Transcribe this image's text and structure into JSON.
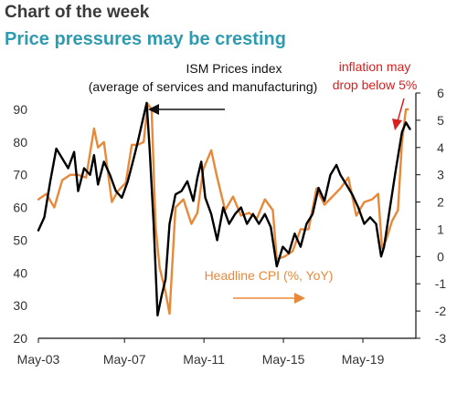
{
  "header": {
    "kicker": "Chart of the week",
    "title": "Price pressures may be cresting"
  },
  "colors": {
    "ism": "#000000",
    "cpi": "#e8893a",
    "annotation_red": "#d62021",
    "title_teal": "#2f9bb1"
  },
  "chart_data": {
    "type": "line",
    "x_ticks": [
      "May-03",
      "May-07",
      "May-11",
      "May-15",
      "May-19"
    ],
    "x_range": [
      2003.0,
      2022.0
    ],
    "y_left": {
      "ticks": [
        20,
        30,
        40,
        50,
        60,
        70,
        80,
        90
      ],
      "range": [
        20,
        95
      ]
    },
    "y_right": {
      "ticks": [
        -3,
        -2,
        -1,
        0,
        1,
        2,
        3,
        4,
        5,
        6
      ],
      "range": [
        -3,
        6
      ]
    },
    "grid": false,
    "series": [
      {
        "name": "ISM Prices index (average of services and manufacturing)",
        "axis": "left",
        "color": "#000000",
        "x": [
          2003.0,
          2003.3,
          2003.6,
          2003.9,
          2004.2,
          2004.5,
          2004.8,
          2005.0,
          2005.3,
          2005.6,
          2005.8,
          2006.0,
          2006.3,
          2006.6,
          2006.9,
          2007.2,
          2007.5,
          2007.8,
          2008.0,
          2008.3,
          2008.45,
          2008.6,
          2008.8,
          2009.0,
          2009.2,
          2009.4,
          2009.6,
          2009.9,
          2010.2,
          2010.5,
          2010.8,
          2011.0,
          2011.2,
          2011.4,
          2011.7,
          2012.0,
          2012.3,
          2012.6,
          2012.9,
          2013.2,
          2013.5,
          2013.8,
          2014.1,
          2014.4,
          2014.7,
          2015.0,
          2015.3,
          2015.6,
          2015.9,
          2016.2,
          2016.5,
          2016.8,
          2017.1,
          2017.4,
          2017.7,
          2018.0,
          2018.2,
          2018.5,
          2018.8,
          2019.1,
          2019.4,
          2019.7,
          2020.0,
          2020.25,
          2020.4,
          2020.7,
          2021.0,
          2021.3,
          2021.5,
          2021.7
        ],
        "y": [
          53,
          57,
          68,
          78,
          75,
          72,
          77,
          65,
          72,
          70,
          76,
          67,
          74,
          70,
          65,
          63,
          68,
          75,
          80,
          88,
          92,
          78,
          55,
          27,
          33,
          38,
          55,
          64,
          65,
          68,
          62,
          69,
          74,
          63,
          58,
          50,
          60,
          55,
          58,
          60,
          55,
          58,
          55,
          58,
          54,
          42,
          48,
          46,
          52,
          48,
          55,
          58,
          66,
          62,
          70,
          73,
          70,
          67,
          64,
          60,
          55,
          57,
          55,
          45,
          48,
          60,
          72,
          83,
          86,
          84
        ]
      },
      {
        "name": "Headline CPI (%, YoY)",
        "axis": "right",
        "color": "#e8893a",
        "x": [
          2003.0,
          2003.4,
          2003.8,
          2004.2,
          2004.6,
          2005.0,
          2005.4,
          2005.8,
          2006.0,
          2006.3,
          2006.7,
          2007.0,
          2007.4,
          2007.7,
          2008.0,
          2008.3,
          2008.5,
          2008.7,
          2008.9,
          2009.1,
          2009.4,
          2009.6,
          2009.9,
          2010.3,
          2010.7,
          2011.0,
          2011.3,
          2011.7,
          2012.0,
          2012.4,
          2012.8,
          2013.2,
          2013.6,
          2014.0,
          2014.4,
          2014.8,
          2015.0,
          2015.4,
          2015.8,
          2016.2,
          2016.6,
          2017.0,
          2017.4,
          2017.8,
          2018.2,
          2018.6,
          2019.0,
          2019.4,
          2019.8,
          2020.1,
          2020.3,
          2020.5,
          2020.8,
          2021.1,
          2021.3,
          2021.5,
          2021.6
        ],
        "y": [
          2.1,
          2.3,
          1.8,
          2.8,
          3.0,
          3.0,
          2.9,
          4.7,
          4.0,
          4.2,
          2.0,
          2.4,
          2.7,
          4.1,
          4.1,
          4.2,
          5.6,
          5.4,
          1.1,
          -0.4,
          -1.3,
          -2.1,
          1.8,
          2.1,
          1.2,
          1.6,
          3.2,
          3.9,
          2.9,
          1.7,
          2.2,
          1.5,
          1.6,
          1.4,
          2.1,
          1.7,
          -0.1,
          0.0,
          0.2,
          1.0,
          1.0,
          2.5,
          1.9,
          2.2,
          2.5,
          2.9,
          1.5,
          2.0,
          2.1,
          2.3,
          0.3,
          0.6,
          1.3,
          1.7,
          4.2,
          5.4,
          5.4
        ]
      }
    ],
    "annotations": {
      "ism_label_line1": "ISM Prices index",
      "ism_label_line2": "(average of services and manufacturing)",
      "cpi_label": "Headline CPI (%, YoY)",
      "callout_line1": "inflation may",
      "callout_line2": "drop below 5%"
    }
  }
}
